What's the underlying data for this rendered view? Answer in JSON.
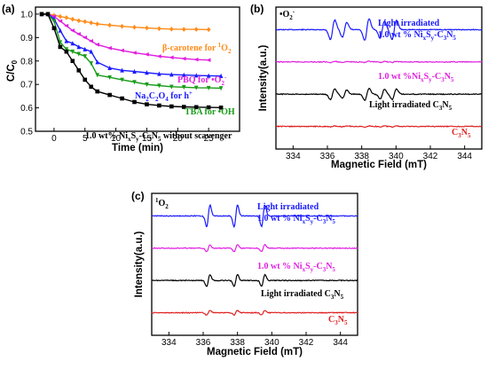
{
  "chart_data": [
    {
      "panel_label": "(a)",
      "type": "line",
      "xlabel": "Time (min)",
      "ylabel": "C/C0",
      "xlim": [
        -3,
        30
      ],
      "ylim": [
        0.5,
        1.03
      ],
      "xticks": [
        0,
        5,
        10,
        15,
        20,
        25
      ],
      "yticks": [
        0.5,
        0.6,
        0.7,
        0.8,
        0.9,
        1.0
      ],
      "series": [
        {
          "name": "β-carotene for ¹O₂",
          "color": "#ff8c1a",
          "marker": "diamond",
          "x": [
            -2,
            -1,
            0,
            1,
            2,
            3,
            4,
            5,
            6,
            7,
            9,
            11,
            13,
            15,
            17,
            19,
            21,
            23,
            25
          ],
          "y": [
            1.0,
            1.0,
            0.995,
            0.99,
            0.985,
            0.978,
            0.972,
            0.968,
            0.963,
            0.958,
            0.953,
            0.948,
            0.944,
            0.941,
            0.938,
            0.936,
            0.935,
            0.935,
            0.934
          ]
        },
        {
          "name": "PBQ for •O₂⁻",
          "color": "#e020e0",
          "marker": "triangle-left",
          "x": [
            -2,
            -1,
            0,
            1,
            2,
            3,
            4,
            5,
            6,
            7,
            9,
            11,
            13,
            15,
            17,
            19,
            21,
            23,
            25
          ],
          "y": [
            1.0,
            1.0,
            0.99,
            0.97,
            0.95,
            0.93,
            0.915,
            0.9,
            0.885,
            0.87,
            0.855,
            0.845,
            0.835,
            0.828,
            0.82,
            0.815,
            0.81,
            0.806,
            0.804
          ]
        },
        {
          "name": "Na₂C₂O₄ for h⁺",
          "color": "#1a1aff",
          "marker": "triangle-up",
          "x": [
            -2,
            -1,
            0,
            1,
            2,
            3,
            4,
            5,
            6,
            7,
            9,
            11,
            13,
            15,
            17,
            19,
            21,
            23,
            25,
            27
          ],
          "y": [
            1.0,
            1.0,
            0.98,
            0.93,
            0.885,
            0.875,
            0.86,
            0.85,
            0.84,
            0.795,
            0.77,
            0.76,
            0.755,
            0.75,
            0.745,
            0.742,
            0.74,
            0.738,
            0.737,
            0.736
          ]
        },
        {
          "name": "TBA for •OH",
          "color": "#1a9c1a",
          "marker": "triangle-down",
          "x": [
            -2,
            -1,
            0,
            1,
            2,
            3,
            4,
            5,
            6,
            7,
            9,
            11,
            13,
            15,
            17,
            19,
            21,
            23,
            25,
            27
          ],
          "y": [
            1.0,
            1.0,
            0.97,
            0.88,
            0.85,
            0.84,
            0.83,
            0.82,
            0.79,
            0.74,
            0.73,
            0.72,
            0.71,
            0.7,
            0.695,
            0.69,
            0.688,
            0.686,
            0.685,
            0.684
          ]
        },
        {
          "name": "1.0 wt% NixSy-C3N5 without scavenger",
          "color": "#000000",
          "marker": "square",
          "x": [
            -2,
            -1,
            0,
            1,
            2,
            3,
            4,
            5,
            6,
            7,
            9,
            11,
            13,
            15,
            17,
            19,
            21,
            23,
            25,
            27
          ],
          "y": [
            1.0,
            1.0,
            0.94,
            0.86,
            0.84,
            0.8,
            0.76,
            0.72,
            0.69,
            0.67,
            0.655,
            0.64,
            0.625,
            0.615,
            0.61,
            0.606,
            0.604,
            0.603,
            0.602,
            0.601
          ]
        }
      ]
    },
    {
      "panel_label": "(b)",
      "type": "line",
      "species_label": "•O₂⁻",
      "xlabel": "Magnetic Field (mT)",
      "ylabel": "Intensity(a.u.)",
      "xlim": [
        333,
        345
      ],
      "xticks": [
        334,
        336,
        338,
        340,
        342,
        344
      ],
      "signal": {
        "kind": "DMPO-•O2-",
        "lines": [
          336.3,
          337.0,
          338.3,
          339.2,
          339.9
        ]
      },
      "series": [
        {
          "name": "Light irradiated 1.0 wt% NixSy-C3N5",
          "color": "#1a1aff",
          "baseline": 4,
          "amplitude": 1.0
        },
        {
          "name": "1.0 wt %NixSy-C3N5",
          "color": "#e020e0",
          "baseline": 3,
          "amplitude": 0.05
        },
        {
          "name": "Light irradiated C3N5",
          "color": "#000000",
          "baseline": 2,
          "amplitude": 0.55
        },
        {
          "name": "C3N5",
          "color": "#e02020",
          "baseline": 1,
          "amplitude": 0.05
        }
      ]
    },
    {
      "panel_label": "(c)",
      "type": "line",
      "species_label": "¹O₂",
      "xlabel": "Magnetic Field (mT)",
      "ylabel": "Intensity(a.u.)",
      "xlim": [
        333,
        345
      ],
      "xticks": [
        334,
        336,
        338,
        340,
        342,
        344
      ],
      "signal": {
        "kind": "TEMP-¹O2",
        "lines": [
          336.3,
          337.9,
          339.5
        ]
      },
      "series": [
        {
          "name": "Light irradiated 1.0 wt % NixSy-C3N5",
          "color": "#1a1aff",
          "baseline": 4,
          "amplitude": 1.0
        },
        {
          "name": "1.0 wt % NixSy-C3N5",
          "color": "#e020e0",
          "baseline": 3,
          "amplitude": 0.32
        },
        {
          "name": "Light irradiated C3N5",
          "color": "#000000",
          "baseline": 2,
          "amplitude": 0.55
        },
        {
          "name": "C3N5",
          "color": "#e02020",
          "baseline": 1,
          "amplitude": 0.22
        }
      ]
    }
  ]
}
